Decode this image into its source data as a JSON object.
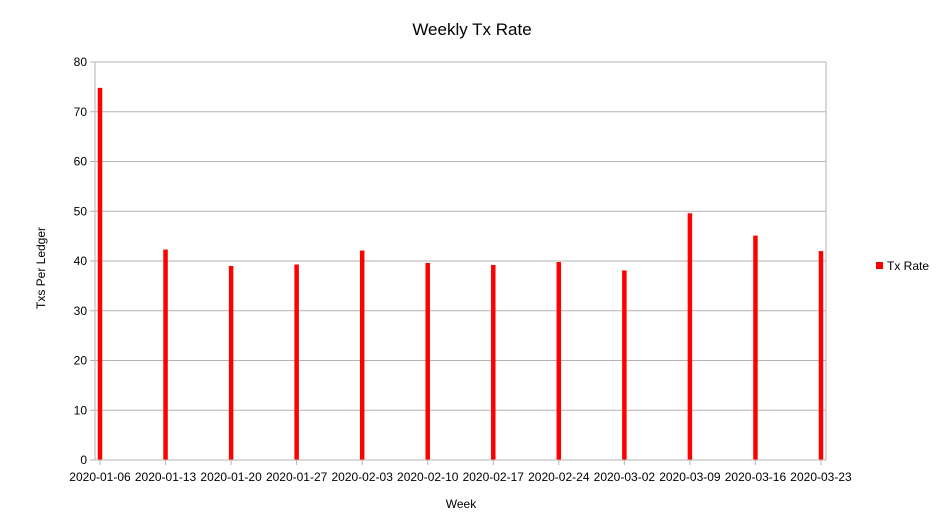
{
  "chart_data": {
    "type": "bar",
    "title": "Weekly Tx Rate",
    "xlabel": "Week",
    "ylabel": "Txs Per Ledger",
    "ylim": [
      0,
      80
    ],
    "yticks": [
      0,
      10,
      20,
      30,
      40,
      50,
      60,
      70,
      80
    ],
    "grid": "horizontal",
    "legend_position": "right",
    "categories": [
      "2020-01-06",
      "2020-01-13",
      "2020-01-20",
      "2020-01-27",
      "2020-02-03",
      "2020-02-10",
      "2020-02-17",
      "2020-02-24",
      "2020-03-02",
      "2020-03-09",
      "2020-03-16",
      "2020-03-23"
    ],
    "series": [
      {
        "name": "Tx Rate",
        "color": "#ff0000",
        "values": [
          74.8,
          42.3,
          39.0,
          39.3,
          42.1,
          39.6,
          39.2,
          39.8,
          38.1,
          49.6,
          45.1,
          42.0
        ]
      }
    ]
  }
}
